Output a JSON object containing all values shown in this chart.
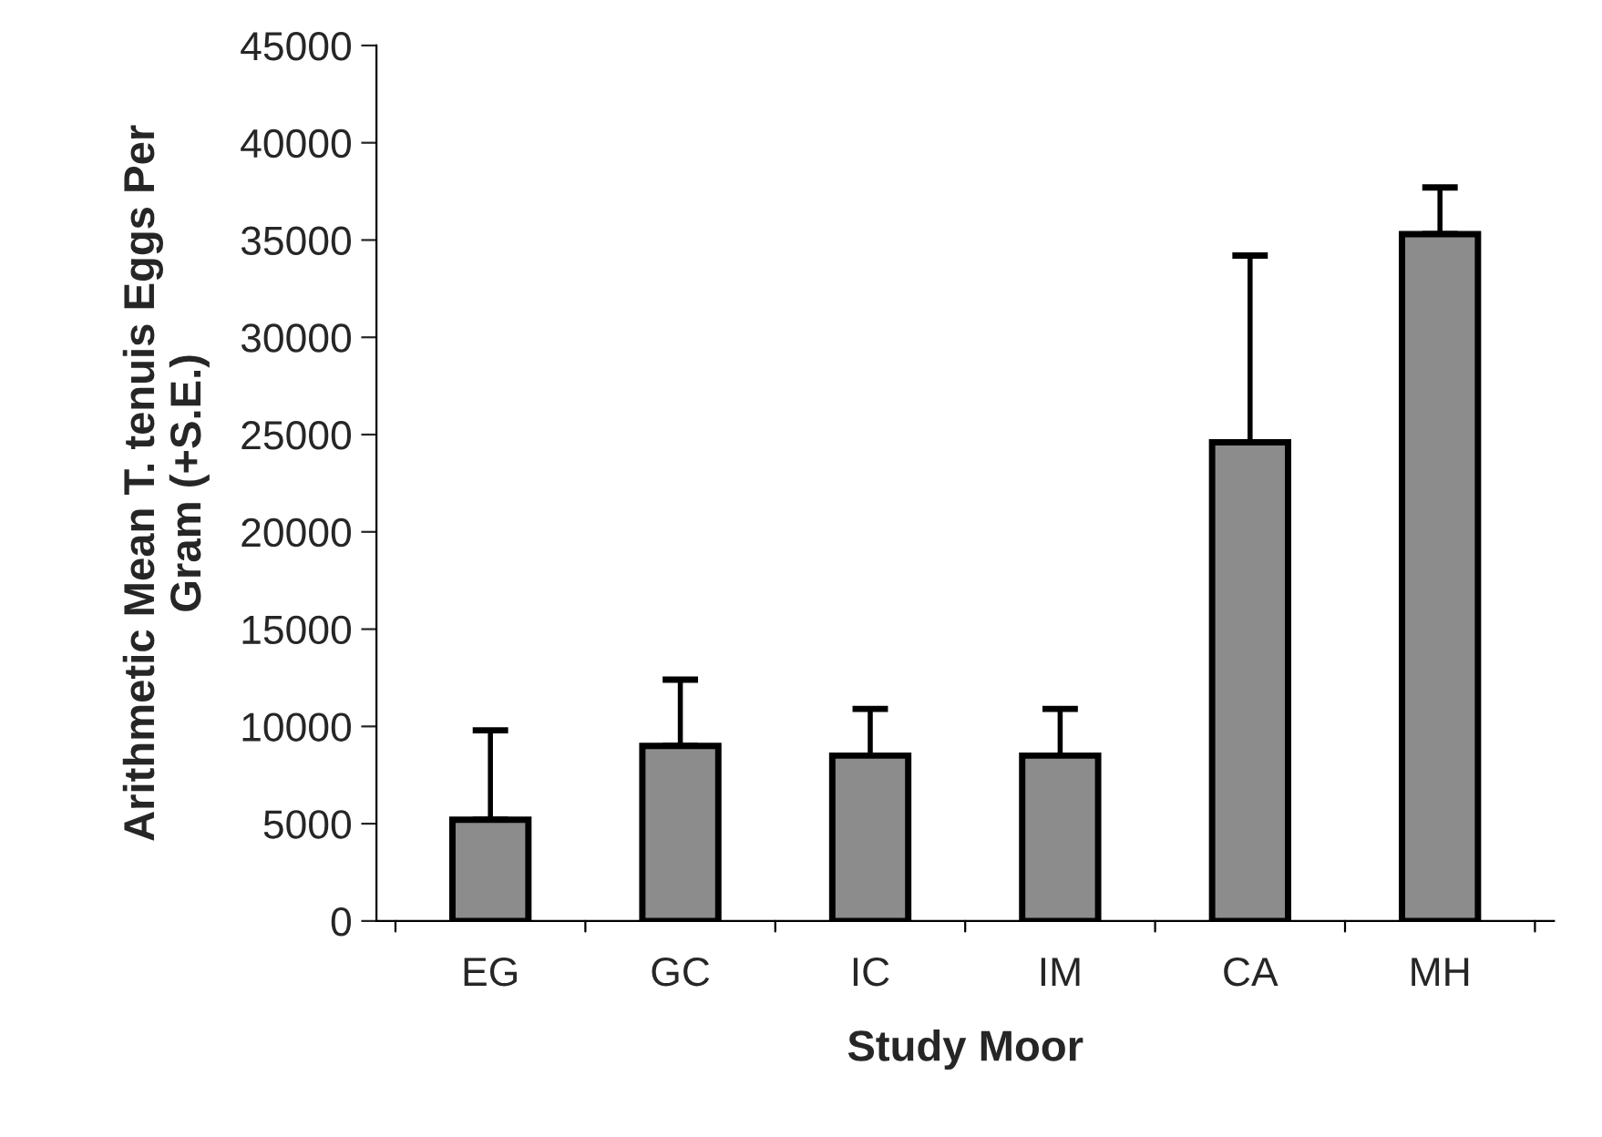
{
  "chart_data": {
    "type": "bar",
    "xlabel": "Study Moor",
    "ylabel": "Arithmetic Mean T. tenuis Eggs Per\nGram (+S.E.)",
    "categories": [
      "EG",
      "GC",
      "IC",
      "IM",
      "CA",
      "MH"
    ],
    "values": [
      5200,
      9000,
      8500,
      8500,
      24600,
      35300
    ],
    "errors": [
      [
        5200,
        9800
      ],
      [
        9000,
        12400
      ],
      [
        8500,
        10900
      ],
      [
        8500,
        10900
      ],
      [
        24600,
        34200
      ],
      [
        35300,
        37700
      ]
    ],
    "color": "#8c8c8c",
    "ylim": [
      0,
      45000
    ],
    "yticks": [
      0,
      5000,
      10000,
      15000,
      20000,
      25000,
      30000,
      35000,
      40000,
      45000
    ],
    "grid": false,
    "legend": false
  }
}
